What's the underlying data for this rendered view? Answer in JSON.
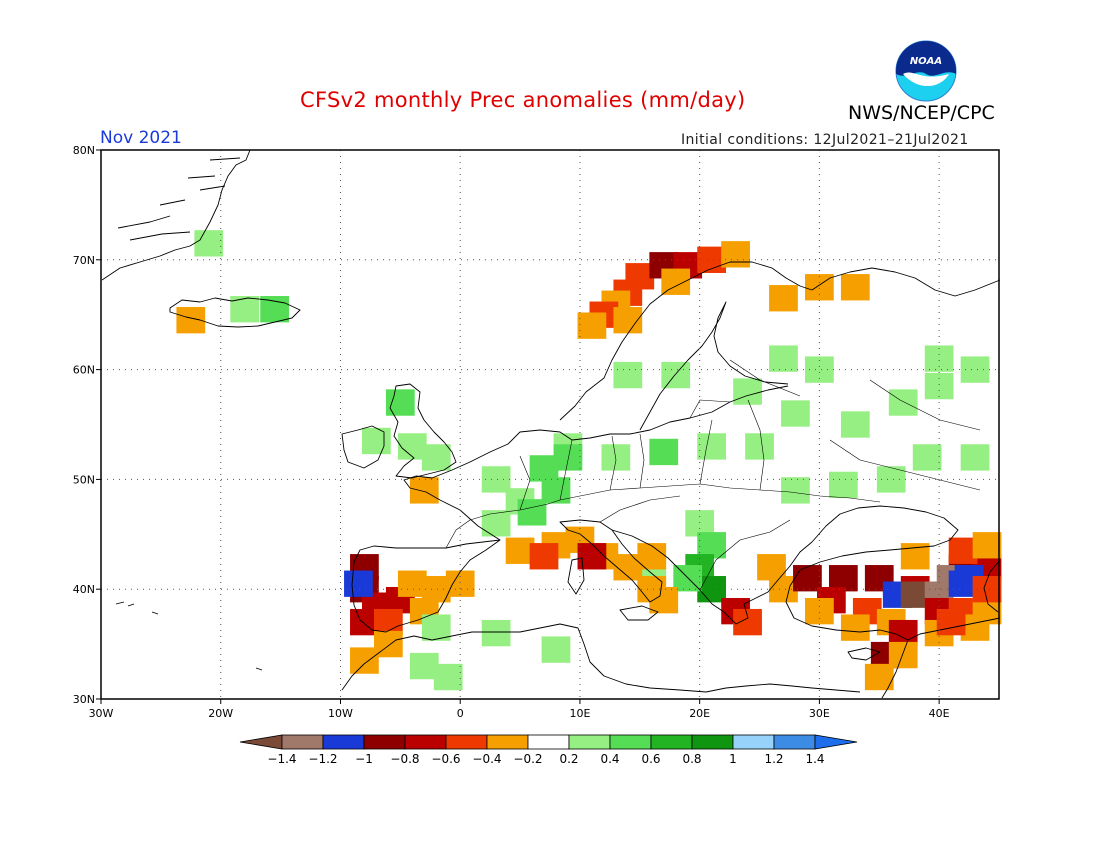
{
  "title": "CFSv2 monthly Prec anomalies (mm/day)",
  "agency": "NWS/NCEP/CPC",
  "logo_text": "NOAA",
  "month": "Nov 2021",
  "initial_conditions": "Initial conditions: 12Jul2021–21Jul2021",
  "map": {
    "lon_range": [
      -30,
      45
    ],
    "lat_range": [
      30,
      80
    ],
    "lon_ticks": [
      {
        "value": -30,
        "label": "30W"
      },
      {
        "value": -20,
        "label": "20W"
      },
      {
        "value": -10,
        "label": "10W"
      },
      {
        "value": 0,
        "label": "0"
      },
      {
        "value": 10,
        "label": "10E"
      },
      {
        "value": 20,
        "label": "20E"
      },
      {
        "value": 30,
        "label": "30E"
      },
      {
        "value": 40,
        "label": "40E"
      }
    ],
    "lat_ticks": [
      {
        "value": 30,
        "label": "30N"
      },
      {
        "value": 40,
        "label": "40N"
      },
      {
        "value": 50,
        "label": "50N"
      },
      {
        "value": 60,
        "label": "60N"
      },
      {
        "value": 70,
        "label": "70N"
      },
      {
        "value": 80,
        "label": "80N"
      }
    ]
  },
  "colorbar": {
    "labels": [
      "−1.4",
      "−1.2",
      "−1",
      "−0.8",
      "−0.6",
      "−0.4",
      "−0.2",
      "0.2",
      "0.4",
      "0.6",
      "0.8",
      "1",
      "1.2",
      "1.4"
    ],
    "colors": [
      "#7b4a36",
      "#a0796b",
      "#1a3ad8",
      "#8e0000",
      "#bb0000",
      "#ee3a00",
      "#f5a000",
      "#ffffff",
      "#96ef82",
      "#55dd55",
      "#22b422",
      "#109510",
      "#96d2fa",
      "#3c8ce6",
      "#1e6eeb"
    ]
  },
  "anomaly_cells": [
    {
      "lon": -21,
      "lat": 71.5,
      "color": "#96ef82"
    },
    {
      "lon": -18,
      "lat": 65.5,
      "color": "#96ef82"
    },
    {
      "lon": -15.5,
      "lat": 65.5,
      "color": "#55dd55"
    },
    {
      "lon": -22.5,
      "lat": 64.5,
      "color": "#f5a000"
    },
    {
      "lon": 15,
      "lat": 68.5,
      "color": "#ee3a00"
    },
    {
      "lon": 17,
      "lat": 69.5,
      "color": "#8e0000"
    },
    {
      "lon": 19,
      "lat": 69.5,
      "color": "#bb0000"
    },
    {
      "lon": 21,
      "lat": 70,
      "color": "#ee3a00"
    },
    {
      "lon": 23,
      "lat": 70.5,
      "color": "#f5a000"
    },
    {
      "lon": 14,
      "lat": 67,
      "color": "#ee3a00"
    },
    {
      "lon": 13,
      "lat": 66,
      "color": "#f5a000"
    },
    {
      "lon": 12,
      "lat": 65,
      "color": "#ee3a00"
    },
    {
      "lon": 11,
      "lat": 64,
      "color": "#f5a000"
    },
    {
      "lon": 14,
      "lat": 64.5,
      "color": "#f5a000"
    },
    {
      "lon": 18,
      "lat": 68,
      "color": "#f5a000"
    },
    {
      "lon": 27,
      "lat": 66.5,
      "color": "#f5a000"
    },
    {
      "lon": 30,
      "lat": 67.5,
      "color": "#f5a000"
    },
    {
      "lon": 33,
      "lat": 67.5,
      "color": "#f5a000"
    },
    {
      "lon": 14,
      "lat": 59.5,
      "color": "#96ef82"
    },
    {
      "lon": 18,
      "lat": 59.5,
      "color": "#96ef82"
    },
    {
      "lon": 27,
      "lat": 61,
      "color": "#96ef82"
    },
    {
      "lon": 30,
      "lat": 60,
      "color": "#96ef82"
    },
    {
      "lon": 24,
      "lat": 58,
      "color": "#96ef82"
    },
    {
      "lon": 28,
      "lat": 56,
      "color": "#96ef82"
    },
    {
      "lon": 33,
      "lat": 55,
      "color": "#96ef82"
    },
    {
      "lon": 37,
      "lat": 57,
      "color": "#96ef82"
    },
    {
      "lon": 40,
      "lat": 58.5,
      "color": "#96ef82"
    },
    {
      "lon": 43,
      "lat": 60,
      "color": "#96ef82"
    },
    {
      "lon": 40,
      "lat": 61,
      "color": "#96ef82"
    },
    {
      "lon": 43,
      "lat": 52,
      "color": "#96ef82"
    },
    {
      "lon": 39,
      "lat": 52,
      "color": "#96ef82"
    },
    {
      "lon": 36,
      "lat": 50,
      "color": "#96ef82"
    },
    {
      "lon": 32,
      "lat": 49.5,
      "color": "#96ef82"
    },
    {
      "lon": 28,
      "lat": 49,
      "color": "#96ef82"
    },
    {
      "lon": 25,
      "lat": 53,
      "color": "#96ef82"
    },
    {
      "lon": 21,
      "lat": 53,
      "color": "#96ef82"
    },
    {
      "lon": 17,
      "lat": 52.5,
      "color": "#55dd55"
    },
    {
      "lon": 13,
      "lat": 52,
      "color": "#96ef82"
    },
    {
      "lon": 9,
      "lat": 53,
      "color": "#96ef82"
    },
    {
      "lon": -5,
      "lat": 57,
      "color": "#55dd55"
    },
    {
      "lon": -4,
      "lat": 53,
      "color": "#96ef82"
    },
    {
      "lon": -7,
      "lat": 53.5,
      "color": "#96ef82"
    },
    {
      "lon": -2,
      "lat": 52,
      "color": "#96ef82"
    },
    {
      "lon": 3,
      "lat": 50,
      "color": "#96ef82"
    },
    {
      "lon": 5,
      "lat": 48,
      "color": "#96ef82"
    },
    {
      "lon": 7,
      "lat": 51,
      "color": "#55dd55"
    },
    {
      "lon": 9,
      "lat": 52,
      "color": "#55dd55"
    },
    {
      "lon": 8,
      "lat": 49,
      "color": "#55dd55"
    },
    {
      "lon": 6,
      "lat": 47,
      "color": "#55dd55"
    },
    {
      "lon": 3,
      "lat": 46,
      "color": "#96ef82"
    },
    {
      "lon": -3,
      "lat": 49,
      "color": "#f5a000"
    },
    {
      "lon": 20,
      "lat": 46,
      "color": "#96ef82"
    },
    {
      "lon": 21,
      "lat": 44,
      "color": "#55dd55"
    },
    {
      "lon": 20,
      "lat": 42,
      "color": "#22b422"
    },
    {
      "lon": 21,
      "lat": 40,
      "color": "#109510"
    },
    {
      "lon": 19,
      "lat": 41,
      "color": "#55dd55"
    },
    {
      "lon": 16,
      "lat": 42,
      "color": "#96ef82"
    },
    {
      "lon": 5,
      "lat": 43.5,
      "color": "#f5a000"
    },
    {
      "lon": 8,
      "lat": 44,
      "color": "#f5a000"
    },
    {
      "lon": 10,
      "lat": 44.5,
      "color": "#f5a000"
    },
    {
      "lon": 12,
      "lat": 43,
      "color": "#f5a000"
    },
    {
      "lon": 14,
      "lat": 42,
      "color": "#f5a000"
    },
    {
      "lon": 16,
      "lat": 40,
      "color": "#f5a000"
    },
    {
      "lon": 17,
      "lat": 39,
      "color": "#f5a000"
    },
    {
      "lon": 7,
      "lat": 43,
      "color": "#ee3a00"
    },
    {
      "lon": 11,
      "lat": 43,
      "color": "#bb0000"
    },
    {
      "lon": 16,
      "lat": 43,
      "color": "#f5a000"
    },
    {
      "lon": 23,
      "lat": 38,
      "color": "#bb0000"
    },
    {
      "lon": 24,
      "lat": 37,
      "color": "#ee3a00"
    },
    {
      "lon": -8,
      "lat": 42,
      "color": "#8e0000"
    },
    {
      "lon": -8,
      "lat": 40,
      "color": "#8e0000"
    },
    {
      "lon": -7,
      "lat": 38.5,
      "color": "#bb0000"
    },
    {
      "lon": -8,
      "lat": 37,
      "color": "#bb0000"
    },
    {
      "lon": -5,
      "lat": 39,
      "color": "#bb0000"
    },
    {
      "lon": -4,
      "lat": 40.5,
      "color": "#f5a000"
    },
    {
      "lon": -2,
      "lat": 40,
      "color": "#f5a000"
    },
    {
      "lon": 0,
      "lat": 40.5,
      "color": "#f5a000"
    },
    {
      "lon": -8.5,
      "lat": 40.5,
      "color": "#1a3ad8"
    },
    {
      "lon": -6,
      "lat": 37,
      "color": "#ee3a00"
    },
    {
      "lon": -6,
      "lat": 35,
      "color": "#f5a000"
    },
    {
      "lon": -8,
      "lat": 33.5,
      "color": "#f5a000"
    },
    {
      "lon": -3,
      "lat": 38,
      "color": "#f5a000"
    },
    {
      "lon": -2,
      "lat": 36.5,
      "color": "#96ef82"
    },
    {
      "lon": -3,
      "lat": 33,
      "color": "#96ef82"
    },
    {
      "lon": -1,
      "lat": 32,
      "color": "#96ef82"
    },
    {
      "lon": 8,
      "lat": 34.5,
      "color": "#96ef82"
    },
    {
      "lon": 3,
      "lat": 36,
      "color": "#96ef82"
    },
    {
      "lon": 26,
      "lat": 42,
      "color": "#f5a000"
    },
    {
      "lon": 27,
      "lat": 40,
      "color": "#f5a000"
    },
    {
      "lon": 29,
      "lat": 41,
      "color": "#8e0000"
    },
    {
      "lon": 32,
      "lat": 41,
      "color": "#8e0000"
    },
    {
      "lon": 35,
      "lat": 41,
      "color": "#8e0000"
    },
    {
      "lon": 31,
      "lat": 39,
      "color": "#bb0000"
    },
    {
      "lon": 34,
      "lat": 38,
      "color": "#ee3a00"
    },
    {
      "lon": 30,
      "lat": 38,
      "color": "#f5a000"
    },
    {
      "lon": 36,
      "lat": 37,
      "color": "#f5a000"
    },
    {
      "lon": 33,
      "lat": 36.5,
      "color": "#f5a000"
    },
    {
      "lon": 38,
      "lat": 40,
      "color": "#bb0000"
    },
    {
      "lon": 36.5,
      "lat": 39.5,
      "color": "#1a3ad8"
    },
    {
      "lon": 38,
      "lat": 39.5,
      "color": "#7b4a36"
    },
    {
      "lon": 40,
      "lat": 39.5,
      "color": "#a0796b"
    },
    {
      "lon": 40,
      "lat": 38,
      "color": "#bb0000"
    },
    {
      "lon": 42,
      "lat": 38,
      "color": "#ee3a00"
    },
    {
      "lon": 44,
      "lat": 38,
      "color": "#f5a000"
    },
    {
      "lon": 37,
      "lat": 36,
      "color": "#bb0000"
    },
    {
      "lon": 35.5,
      "lat": 34,
      "color": "#8e0000"
    },
    {
      "lon": 37,
      "lat": 34,
      "color": "#f5a000"
    },
    {
      "lon": 40,
      "lat": 36,
      "color": "#f5a000"
    },
    {
      "lon": 43,
      "lat": 36.5,
      "color": "#f5a000"
    },
    {
      "lon": 35,
      "lat": 32,
      "color": "#f5a000"
    },
    {
      "lon": 42,
      "lat": 42,
      "color": "#8e0000"
    },
    {
      "lon": 44,
      "lat": 42,
      "color": "#bb0000"
    },
    {
      "lon": 42,
      "lat": 43.5,
      "color": "#ee3a00"
    },
    {
      "lon": 44,
      "lat": 44,
      "color": "#f5a000"
    },
    {
      "lon": 41,
      "lat": 41,
      "color": "#a0796b"
    },
    {
      "lon": 42.5,
      "lat": 41,
      "color": "#1a3ad8"
    },
    {
      "lon": 42,
      "lat": 40.5,
      "color": "#1a3ad8"
    },
    {
      "lon": 38,
      "lat": 43,
      "color": "#f5a000"
    },
    {
      "lon": 44,
      "lat": 40,
      "color": "#ee3a00"
    },
    {
      "lon": 41,
      "lat": 37,
      "color": "#ee3a00"
    }
  ]
}
